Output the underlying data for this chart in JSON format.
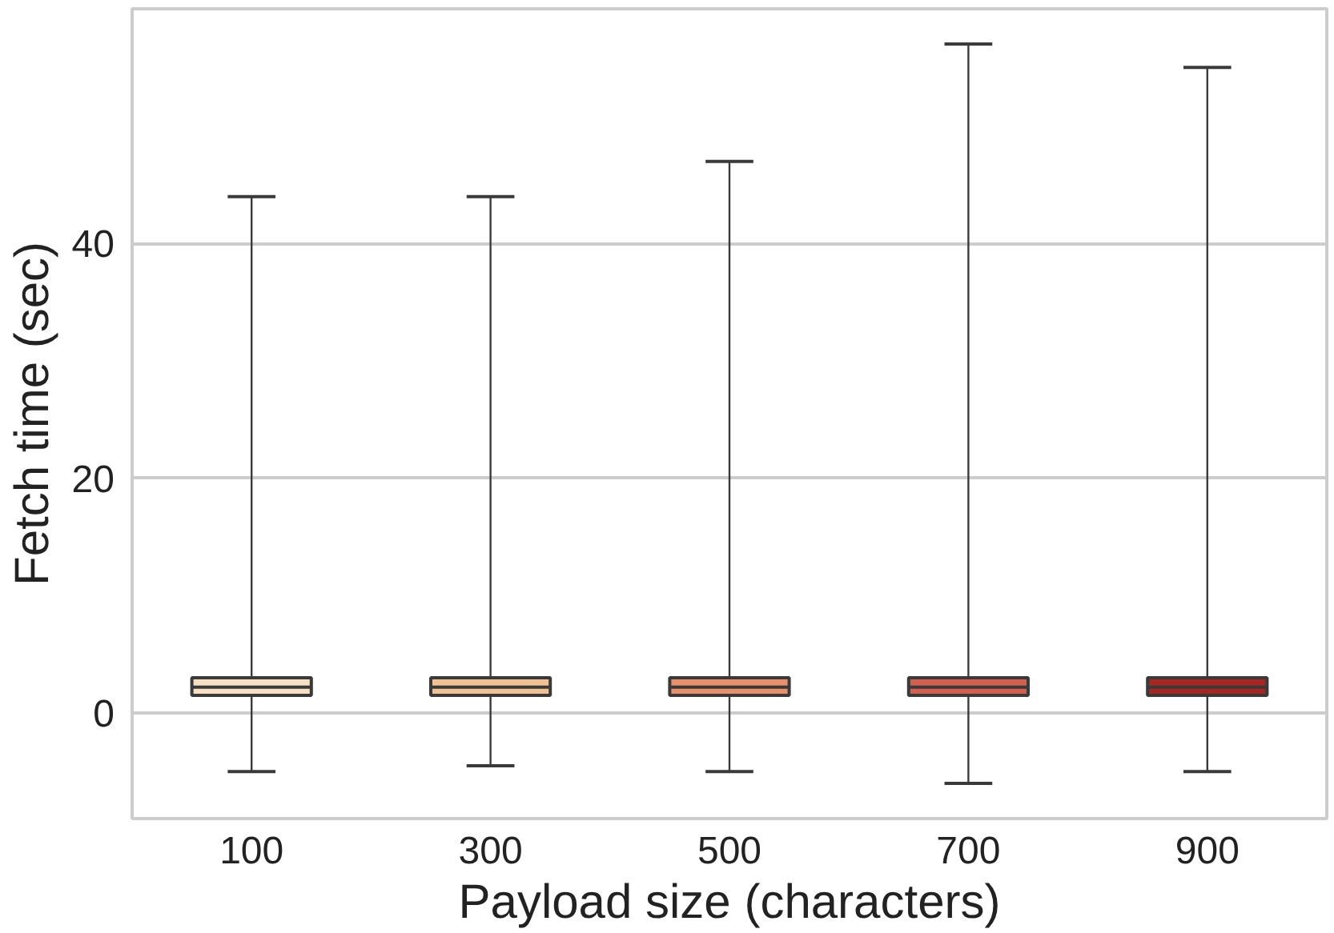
{
  "chart_data": {
    "type": "box",
    "xlabel": "Payload size (characters)",
    "ylabel": "Fetch time (sec)",
    "categories": [
      "100",
      "300",
      "500",
      "700",
      "900"
    ],
    "colors": [
      "#f6dfc2",
      "#efc193",
      "#e8906a",
      "#d45f4e",
      "#a82622"
    ],
    "boxes": [
      {
        "low": -5,
        "q1": 1.5,
        "median": 2.2,
        "q3": 3,
        "high": 44
      },
      {
        "low": -4.5,
        "q1": 1.5,
        "median": 2.2,
        "q3": 3,
        "high": 44
      },
      {
        "low": -5,
        "q1": 1.5,
        "median": 2.2,
        "q3": 3,
        "high": 47
      },
      {
        "low": -6,
        "q1": 1.5,
        "median": 2.2,
        "q3": 3,
        "high": 57
      },
      {
        "low": -5,
        "q1": 1.5,
        "median": 2.2,
        "q3": 3,
        "high": 55
      }
    ],
    "ylim": [
      -9,
      60
    ],
    "yticks": [
      0,
      20,
      40
    ],
    "grid": "y"
  }
}
